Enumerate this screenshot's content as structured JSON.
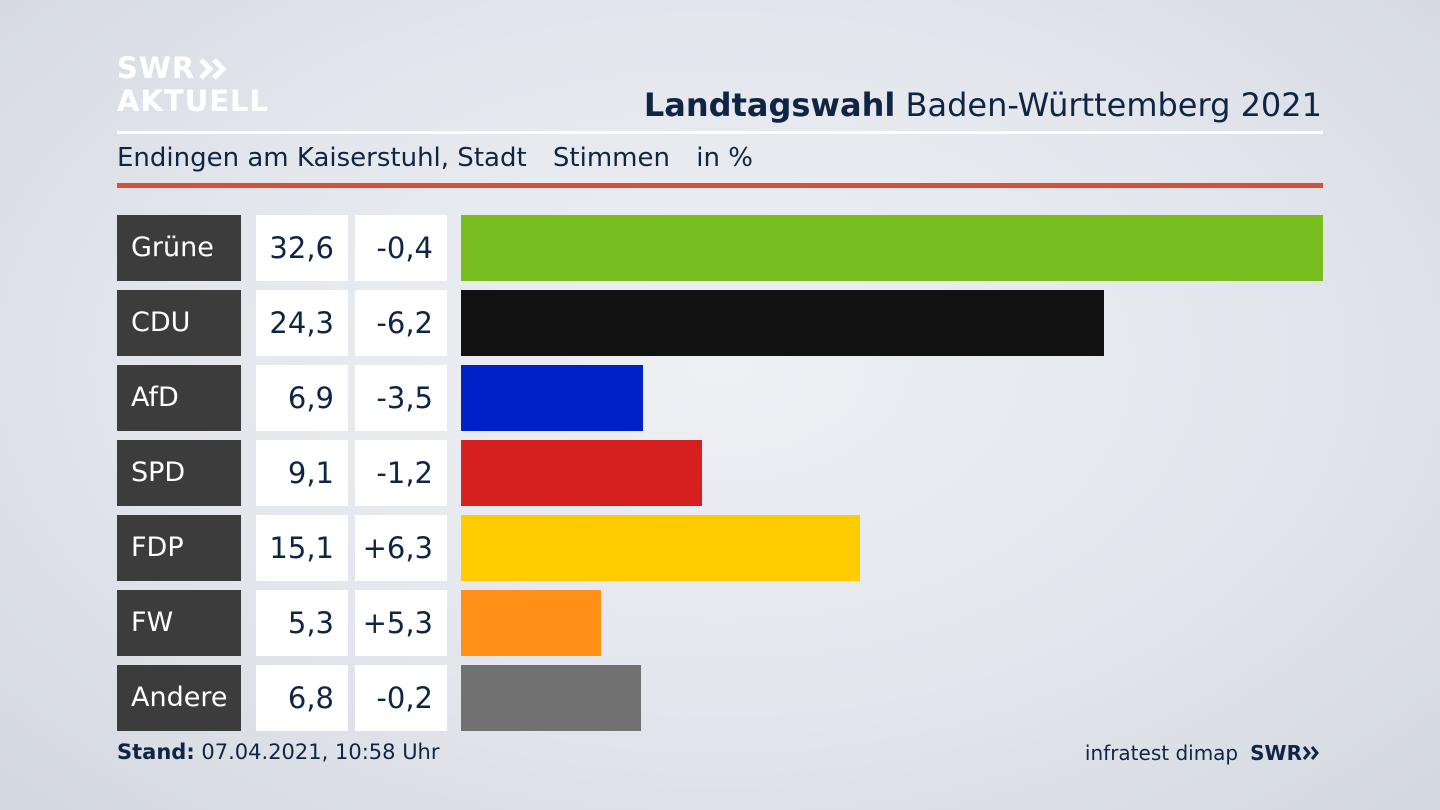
{
  "logo": {
    "line1": "SWR",
    "line2": "AKTUELL"
  },
  "header": {
    "title_bold": "Landtagswahl",
    "title_rest": "Baden-Württemberg 2021"
  },
  "subtitle": {
    "location": "Endingen am Kaiserstuhl, Stadt",
    "measure": "Stimmen",
    "unit": "in %"
  },
  "colors": {
    "accent_rule": "#d6503b"
  },
  "chart_data": {
    "type": "bar",
    "orientation": "horizontal",
    "categories": [
      "Grüne",
      "CDU",
      "AfD",
      "SPD",
      "FDP",
      "FW",
      "Andere"
    ],
    "values": [
      32.6,
      24.3,
      6.9,
      9.1,
      15.1,
      5.3,
      6.8
    ],
    "changes": [
      "-0,4",
      "-6,2",
      "-3,5",
      "-1,2",
      "+6,3",
      "+5,3",
      "-0,2"
    ],
    "value_labels": [
      "32,6",
      "24,3",
      "6,9",
      "9,1",
      "15,1",
      "5,3",
      "6,8"
    ],
    "colors": [
      "#78be1e",
      "#121212",
      "#0021c8",
      "#d61f1f",
      "#ffcc00",
      "#ff8f16",
      "#717171"
    ],
    "unit": "in %"
  },
  "footer": {
    "stand_label": "Stand:",
    "stand_value": "07.04.2021, 10:58 Uhr",
    "source": "infratest dimap",
    "brand": "SWR"
  }
}
